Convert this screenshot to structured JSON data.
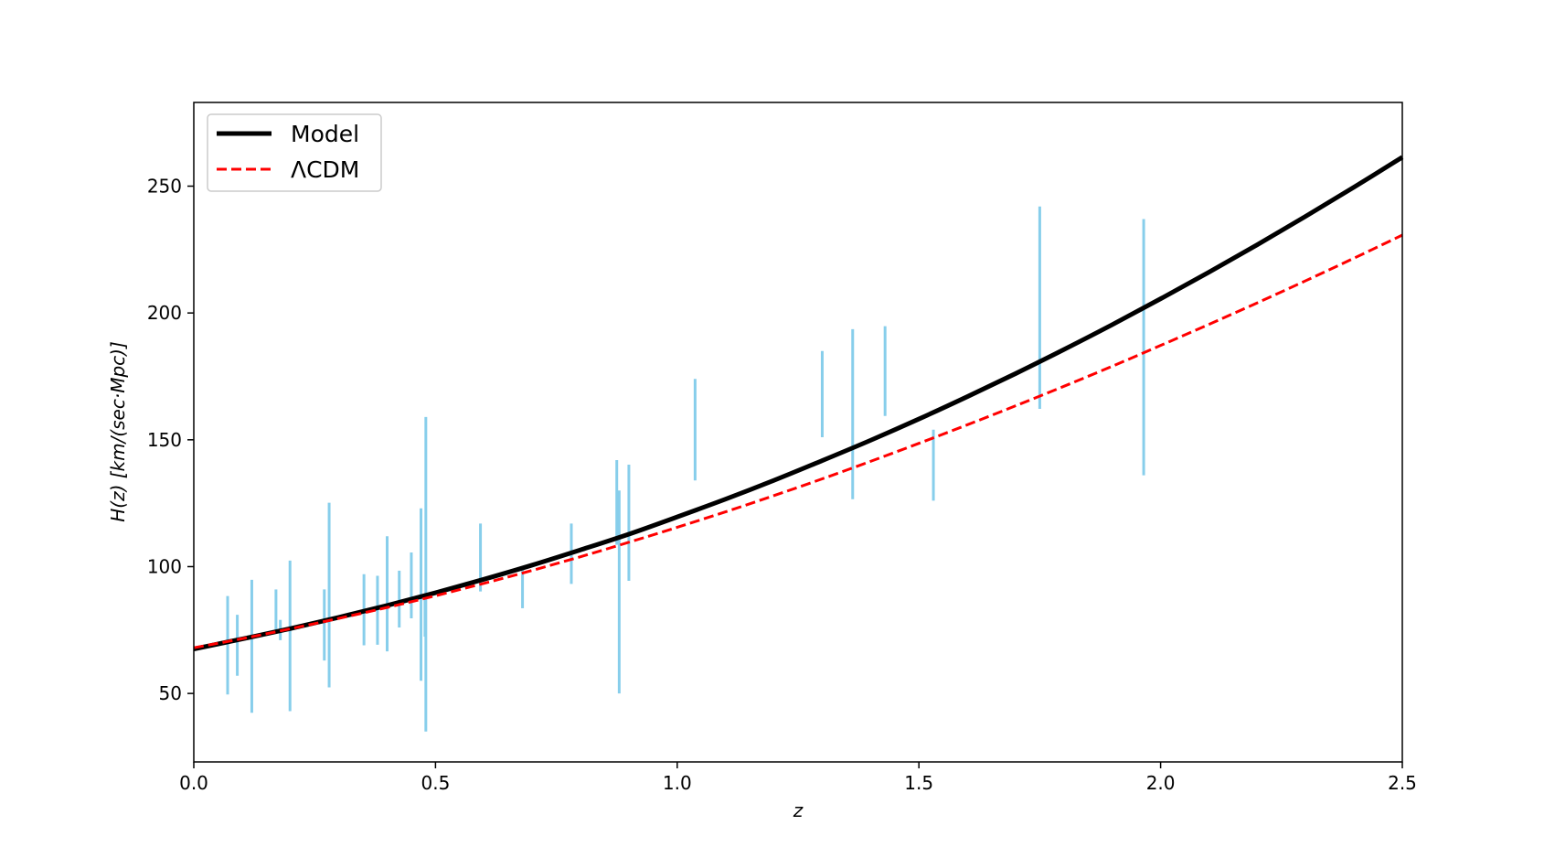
{
  "chart_data": {
    "type": "line",
    "xlabel": "z",
    "ylabel": "H(z)  [km/(sec·Mpc)]",
    "xlim": [
      0.0,
      2.5
    ],
    "ylim": [
      23,
      283
    ],
    "xticks": [
      0.0,
      0.5,
      1.0,
      1.5,
      2.0,
      2.5
    ],
    "xtick_labels": [
      "0.0",
      "0.5",
      "1.0",
      "1.5",
      "2.0",
      "2.5"
    ],
    "yticks": [
      50,
      100,
      150,
      200,
      250
    ],
    "ytick_labels": [
      "50",
      "100",
      "150",
      "200",
      "250"
    ],
    "grid": false,
    "legend": "upper-left",
    "series": [
      {
        "name": "Model",
        "style": "solid",
        "color": "#000000",
        "x": [
          0.0,
          0.1,
          0.2,
          0.3,
          0.4,
          0.5,
          0.6,
          0.7,
          0.8,
          0.9,
          1.0,
          1.1,
          1.2,
          1.3,
          1.4,
          1.5,
          1.6,
          1.7,
          1.8,
          1.9,
          2.0,
          2.1,
          2.2,
          2.3,
          2.4,
          2.5
        ],
        "y": [
          67.5,
          71.5,
          75.6,
          80.0,
          84.7,
          89.7,
          95.0,
          100.6,
          106.6,
          112.8,
          119.6,
          126.6,
          134.0,
          141.8,
          149.8,
          158.2,
          167.0,
          176.1,
          185.6,
          195.4,
          205.6,
          216.1,
          226.9,
          238.1,
          249.6,
          261.4
        ]
      },
      {
        "name": "ΛCDM",
        "style": "dashed",
        "color": "#ff0000",
        "x": [
          0.0,
          0.1,
          0.2,
          0.3,
          0.4,
          0.5,
          0.6,
          0.7,
          0.8,
          0.9,
          1.0,
          1.1,
          1.2,
          1.3,
          1.4,
          1.5,
          1.6,
          1.7,
          1.8,
          1.9,
          2.0,
          2.1,
          2.2,
          2.3,
          2.4,
          2.5
        ],
        "y": [
          68.0,
          71.6,
          75.5,
          79.6,
          83.9,
          88.5,
          93.4,
          98.5,
          103.9,
          109.6,
          115.5,
          121.6,
          128.0,
          134.6,
          141.5,
          148.6,
          155.9,
          163.4,
          171.1,
          179.0,
          187.2,
          195.5,
          204.0,
          212.7,
          221.6,
          230.7
        ]
      }
    ],
    "errorbars": {
      "color": "#87ceeb",
      "points": [
        {
          "z": 0.07,
          "low": 49.6,
          "high": 88.4
        },
        {
          "z": 0.09,
          "low": 57.0,
          "high": 81.0
        },
        {
          "z": 0.12,
          "low": 42.4,
          "high": 94.8
        },
        {
          "z": 0.17,
          "low": 75.0,
          "high": 91.0
        },
        {
          "z": 0.179,
          "low": 71.0,
          "high": 79.0
        },
        {
          "z": 0.199,
          "low": 43.0,
          "high": 102.4
        },
        {
          "z": 0.27,
          "low": 63.0,
          "high": 91.0
        },
        {
          "z": 0.28,
          "low": 52.4,
          "high": 125.2
        },
        {
          "z": 0.352,
          "low": 69.0,
          "high": 97.0
        },
        {
          "z": 0.38,
          "low": 69.2,
          "high": 96.4
        },
        {
          "z": 0.4,
          "low": 66.6,
          "high": 112.0
        },
        {
          "z": 0.425,
          "low": 76.0,
          "high": 98.4
        },
        {
          "z": 0.45,
          "low": 79.6,
          "high": 105.6
        },
        {
          "z": 0.47,
          "low": 55.0,
          "high": 123.0
        },
        {
          "z": 0.4783,
          "low": 72.4,
          "high": 88.4
        },
        {
          "z": 0.48,
          "low": 35.0,
          "high": 159.0
        },
        {
          "z": 0.593,
          "low": 90.2,
          "high": 117.0
        },
        {
          "z": 0.68,
          "low": 83.6,
          "high": 99.6
        },
        {
          "z": 0.781,
          "low": 93.2,
          "high": 117.0
        },
        {
          "z": 0.875,
          "low": 108.6,
          "high": 142.0
        },
        {
          "z": 0.88,
          "low": 50.0,
          "high": 130.0
        },
        {
          "z": 0.9,
          "low": 94.4,
          "high": 140.2
        },
        {
          "z": 1.037,
          "low": 134.0,
          "high": 174.0
        },
        {
          "z": 1.3,
          "low": 151.0,
          "high": 185.0
        },
        {
          "z": 1.363,
          "low": 126.6,
          "high": 193.6
        },
        {
          "z": 1.43,
          "low": 159.4,
          "high": 194.8
        },
        {
          "z": 1.53,
          "low": 126.0,
          "high": 154.0
        },
        {
          "z": 1.75,
          "low": 162.2,
          "high": 242.0
        },
        {
          "z": 1.965,
          "low": 136.0,
          "high": 237.0
        }
      ]
    }
  }
}
